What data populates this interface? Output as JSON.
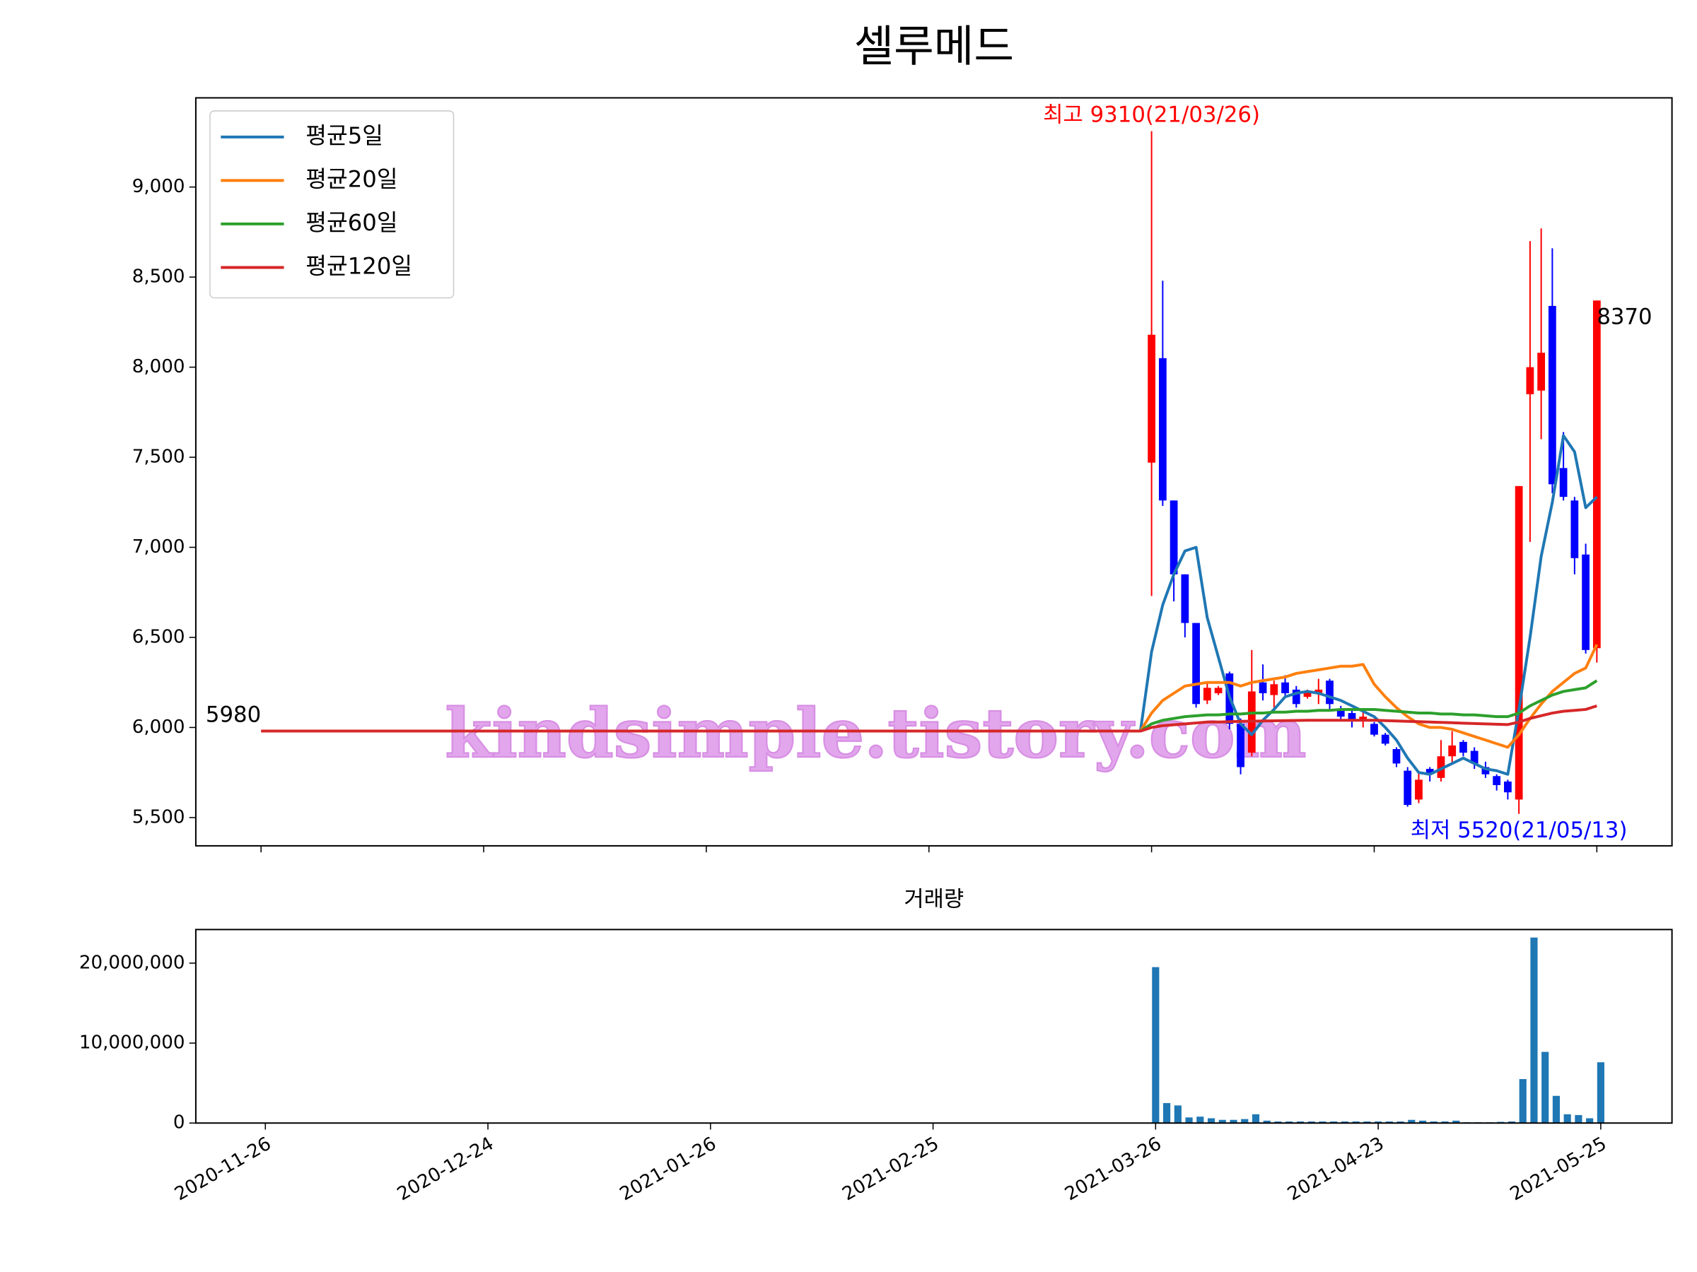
{
  "chart_data": [
    {
      "type": "candlestick",
      "title": "셀루메드",
      "watermark": "kindsimple.tistory.com",
      "up_color": "red",
      "down_color": "blue",
      "legend": "upper left",
      "xlim": [
        -5.86,
        126.75
      ],
      "xticks": [
        0,
        20,
        40,
        60,
        80,
        100,
        120
      ],
      "ylim": [
        5343,
        9495
      ],
      "yticks": [
        {
          "value": 5500,
          "label": "5,500"
        },
        {
          "value": 6000,
          "label": "6,000"
        },
        {
          "value": 6500,
          "label": "6,500"
        },
        {
          "value": 7000,
          "label": "7,000"
        },
        {
          "value": 7500,
          "label": "7,500"
        },
        {
          "value": 8000,
          "label": "8,000"
        },
        {
          "value": 8500,
          "label": "8,500"
        },
        {
          "value": 9000,
          "label": "9,000"
        }
      ],
      "x": [
        80,
        81,
        82,
        83,
        84,
        85,
        86,
        87,
        88,
        89,
        90,
        91,
        92,
        93,
        94,
        95,
        96,
        97,
        98,
        99,
        100,
        101,
        102,
        103,
        104,
        105,
        106,
        107,
        108,
        109,
        110,
        111,
        112,
        113,
        114,
        115,
        116,
        117,
        118,
        119,
        120
      ],
      "open": [
        7470,
        8050,
        7260,
        6850,
        6580,
        6150,
        6190,
        6300,
        6020,
        5860,
        6250,
        6180,
        6250,
        6210,
        6170,
        6190,
        6260,
        6100,
        6080,
        6040,
        6020,
        5960,
        5880,
        5760,
        5600,
        5770,
        5720,
        5840,
        5920,
        5870,
        5780,
        5730,
        5700,
        5600,
        7850,
        7870,
        8340,
        7440,
        7260,
        6960,
        6440
      ],
      "high": [
        9310,
        8480,
        7260,
        6850,
        6580,
        6250,
        6230,
        6310,
        6050,
        6430,
        6350,
        6260,
        6290,
        6230,
        6210,
        6270,
        6270,
        6120,
        6100,
        6090,
        6030,
        5970,
        5890,
        5780,
        5750,
        5780,
        5930,
        5980,
        5930,
        5890,
        5810,
        5740,
        5710,
        7340,
        8700,
        8770,
        8660,
        7640,
        7280,
        7020,
        8370
      ],
      "low": [
        6730,
        7230,
        6700,
        6500,
        6110,
        6130,
        6180,
        5990,
        5740,
        5840,
        6150,
        6110,
        6170,
        6110,
        6160,
        6130,
        6100,
        6040,
        6000,
        6000,
        5950,
        5900,
        5780,
        5560,
        5580,
        5700,
        5700,
        5800,
        5840,
        5770,
        5720,
        5650,
        5600,
        5520,
        7030,
        7600,
        7300,
        7260,
        6850,
        6410,
        6360
      ],
      "close": [
        8180,
        7260,
        6850,
        6580,
        6130,
        6220,
        6220,
        6020,
        5780,
        6200,
        6190,
        6240,
        6190,
        6130,
        6200,
        6210,
        6130,
        6060,
        6040,
        6060,
        5960,
        5910,
        5800,
        5570,
        5710,
        5740,
        5840,
        5900,
        5860,
        5800,
        5740,
        5680,
        5640,
        7340,
        8000,
        8080,
        7350,
        7280,
        6940,
        6430,
        8370
      ],
      "series": [
        {
          "name": "평균5일",
          "color": "#1f77b4",
          "x": [
            79,
            80,
            81,
            82,
            83,
            84,
            85,
            86,
            87,
            88,
            89,
            90,
            91,
            92,
            93,
            94,
            95,
            96,
            97,
            98,
            99,
            100,
            101,
            102,
            103,
            104,
            105,
            106,
            107,
            108,
            109,
            110,
            111,
            112,
            113,
            114,
            115,
            116,
            117,
            118,
            119,
            120
          ],
          "values": [
            5980,
            6420,
            6680,
            6850,
            6980,
            7000,
            6610,
            6390,
            6170,
            6020,
            5960,
            6040,
            6100,
            6170,
            6190,
            6200,
            6190,
            6170,
            6150,
            6120,
            6090,
            6060,
            6000,
            5930,
            5830,
            5750,
            5740,
            5770,
            5800,
            5830,
            5800,
            5770,
            5760,
            5740,
            6100,
            6500,
            6950,
            7250,
            7620,
            7530,
            7220,
            7280
          ]
        },
        {
          "name": "평균20일",
          "color": "#ff7f0e",
          "x": [
            79,
            80,
            81,
            82,
            83,
            84,
            85,
            86,
            87,
            88,
            89,
            90,
            91,
            92,
            93,
            94,
            95,
            96,
            97,
            98,
            99,
            100,
            101,
            102,
            103,
            104,
            105,
            106,
            107,
            108,
            109,
            110,
            111,
            112,
            113,
            114,
            115,
            116,
            117,
            118,
            119,
            120
          ],
          "values": [
            5980,
            6080,
            6150,
            6190,
            6230,
            6240,
            6250,
            6250,
            6250,
            6230,
            6250,
            6260,
            6270,
            6280,
            6300,
            6310,
            6320,
            6330,
            6340,
            6340,
            6350,
            6240,
            6170,
            6110,
            6060,
            6020,
            6000,
            6000,
            5990,
            5970,
            5950,
            5930,
            5910,
            5890,
            5960,
            6050,
            6130,
            6200,
            6250,
            6300,
            6330,
            6460
          ]
        },
        {
          "name": "평균60일",
          "color": "#2ca02c",
          "x": [
            79,
            80,
            81,
            82,
            83,
            84,
            85,
            86,
            87,
            88,
            89,
            90,
            91,
            92,
            93,
            94,
            95,
            96,
            97,
            98,
            99,
            100,
            101,
            102,
            103,
            104,
            105,
            106,
            107,
            108,
            109,
            110,
            111,
            112,
            113,
            114,
            115,
            116,
            117,
            118,
            119,
            120
          ],
          "values": [
            5980,
            6020,
            6040,
            6050,
            6060,
            6065,
            6070,
            6070,
            6075,
            6075,
            6080,
            6080,
            6085,
            6085,
            6090,
            6090,
            6095,
            6095,
            6100,
            6100,
            6100,
            6100,
            6095,
            6090,
            6085,
            6080,
            6080,
            6075,
            6075,
            6070,
            6070,
            6065,
            6060,
            6060,
            6080,
            6120,
            6150,
            6180,
            6200,
            6210,
            6220,
            6260
          ]
        },
        {
          "name": "평균120일",
          "color": "#d62728",
          "x": [
            0,
            79,
            80,
            81,
            82,
            83,
            84,
            85,
            86,
            87,
            88,
            89,
            90,
            91,
            92,
            93,
            94,
            95,
            96,
            97,
            98,
            99,
            100,
            101,
            102,
            103,
            104,
            105,
            106,
            107,
            108,
            109,
            110,
            111,
            112,
            113,
            114,
            115,
            116,
            117,
            118,
            119,
            120
          ],
          "values": [
            5980,
            5980,
            6000,
            6010,
            6015,
            6020,
            6025,
            6030,
            6030,
            6032,
            6034,
            6035,
            6036,
            6037,
            6038,
            6039,
            6040,
            6040,
            6040,
            6040,
            6040,
            6040,
            6040,
            6038,
            6036,
            6034,
            6032,
            6030,
            6028,
            6026,
            6024,
            6022,
            6020,
            6018,
            6016,
            6030,
            6050,
            6065,
            6080,
            6090,
            6095,
            6100,
            6120
          ]
        }
      ],
      "annotations": [
        {
          "text": "최고 9310(21/03/26)",
          "x": 80,
          "y": 9310,
          "color": "red",
          "ha": "center",
          "va": "bottom"
        },
        {
          "text": "최저 5520(21/05/13)",
          "x": 113,
          "y": 5520,
          "color": "blue",
          "ha": "center",
          "va": "top"
        },
        {
          "text": "5980",
          "x": 0,
          "y": 5980,
          "color": "black",
          "ha": "right",
          "va": "bottom"
        },
        {
          "text": "8370",
          "x": 120,
          "y": 8370,
          "color": "black",
          "ha": "left",
          "va": "top"
        }
      ]
    },
    {
      "type": "bar",
      "title": "거래량",
      "color": "#1f77b4",
      "xlim": [
        -6.25,
        126.4
      ],
      "xticks": [
        {
          "value": 0,
          "label": "2020-11-26"
        },
        {
          "value": 20,
          "label": "2020-12-24"
        },
        {
          "value": 40,
          "label": "2021-01-26"
        },
        {
          "value": 60,
          "label": "2021-02-25"
        },
        {
          "value": 80,
          "label": "2021-03-26"
        },
        {
          "value": 100,
          "label": "2021-04-23"
        },
        {
          "value": 120,
          "label": "2021-05-25"
        }
      ],
      "ylim": [
        0,
        24200000
      ],
      "yticks": [
        0,
        {
          "value": 10000000,
          "label": "10,000,000"
        },
        {
          "value": 20000000,
          "label": "20,000,000"
        }
      ],
      "x": [
        80,
        81,
        82,
        83,
        84,
        85,
        86,
        87,
        88,
        89,
        90,
        91,
        92,
        93,
        94,
        95,
        96,
        97,
        98,
        99,
        100,
        101,
        102,
        103,
        104,
        105,
        106,
        107,
        108,
        109,
        110,
        111,
        112,
        113,
        114,
        115,
        116,
        117,
        118,
        119,
        120
      ],
      "values": [
        19500000,
        2500000,
        2200000,
        700000,
        800000,
        600000,
        400000,
        400000,
        500000,
        1100000,
        300000,
        200000,
        200000,
        200000,
        200000,
        200000,
        200000,
        200000,
        200000,
        200000,
        200000,
        200000,
        200000,
        400000,
        300000,
        200000,
        200000,
        300000,
        100000,
        100000,
        100000,
        150000,
        200000,
        5500000,
        23200000,
        8900000,
        3400000,
        1100000,
        1000000,
        600000,
        7600000
      ]
    }
  ]
}
